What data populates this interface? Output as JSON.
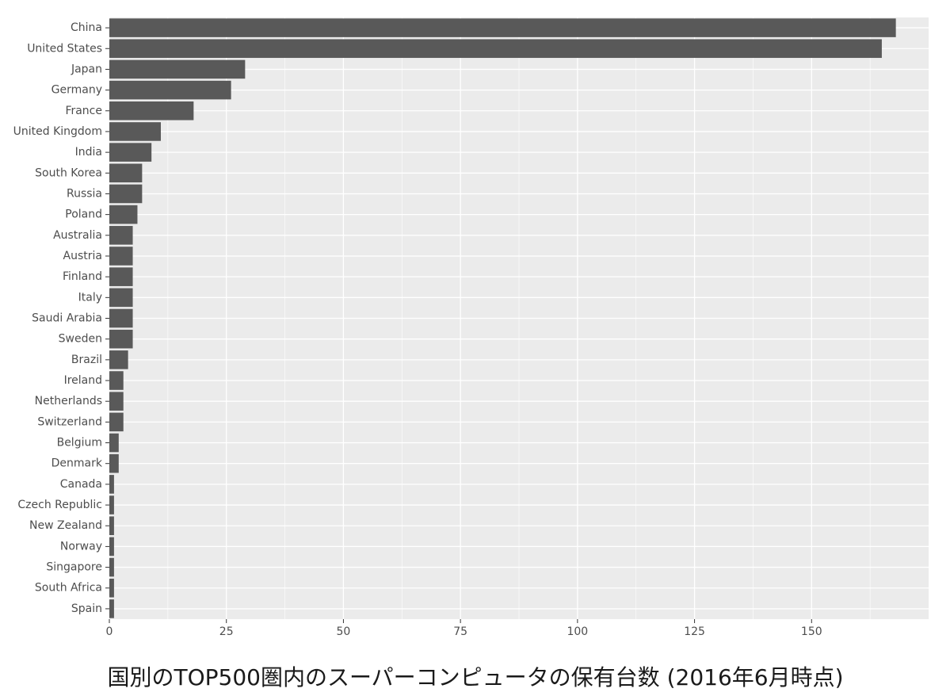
{
  "chart_data": {
    "type": "bar",
    "orientation": "horizontal",
    "title": "国別のTOP500圏内のスーパーコンピュータの保有台数 (2016年6月時点)",
    "categories": [
      "China",
      "United States",
      "Japan",
      "Germany",
      "France",
      "United Kingdom",
      "India",
      "South Korea",
      "Russia",
      "Poland",
      "Australia",
      "Austria",
      "Finland",
      "Italy",
      "Saudi Arabia",
      "Sweden",
      "Brazil",
      "Ireland",
      "Netherlands",
      "Switzerland",
      "Belgium",
      "Denmark",
      "Canada",
      "Czech Republic",
      "New Zealand",
      "Norway",
      "Singapore",
      "South Africa",
      "Spain"
    ],
    "values": [
      168,
      165,
      29,
      26,
      18,
      11,
      9,
      7,
      7,
      6,
      5,
      5,
      5,
      5,
      5,
      5,
      4,
      3,
      3,
      3,
      2,
      2,
      1,
      1,
      1,
      1,
      1,
      1,
      1
    ],
    "color": "#595959",
    "xlim": [
      0,
      175
    ],
    "xticks": [
      0,
      25,
      50,
      75,
      100,
      125,
      150
    ],
    "grid": true
  }
}
